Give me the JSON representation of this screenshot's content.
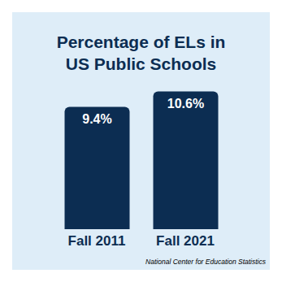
{
  "chart_data": {
    "type": "bar",
    "title": "Percentage of ELs in\nUS Public Schools",
    "categories": [
      "Fall 2011",
      "Fall 2021"
    ],
    "values": [
      9.4,
      10.6
    ],
    "value_labels": [
      "9.4%",
      "10.6%"
    ],
    "data_labels": true,
    "color": "#0c2d52",
    "ylim": [
      0,
      11
    ],
    "tick_labels": false,
    "grid": false,
    "source": "National Center for Education Statistics"
  }
}
